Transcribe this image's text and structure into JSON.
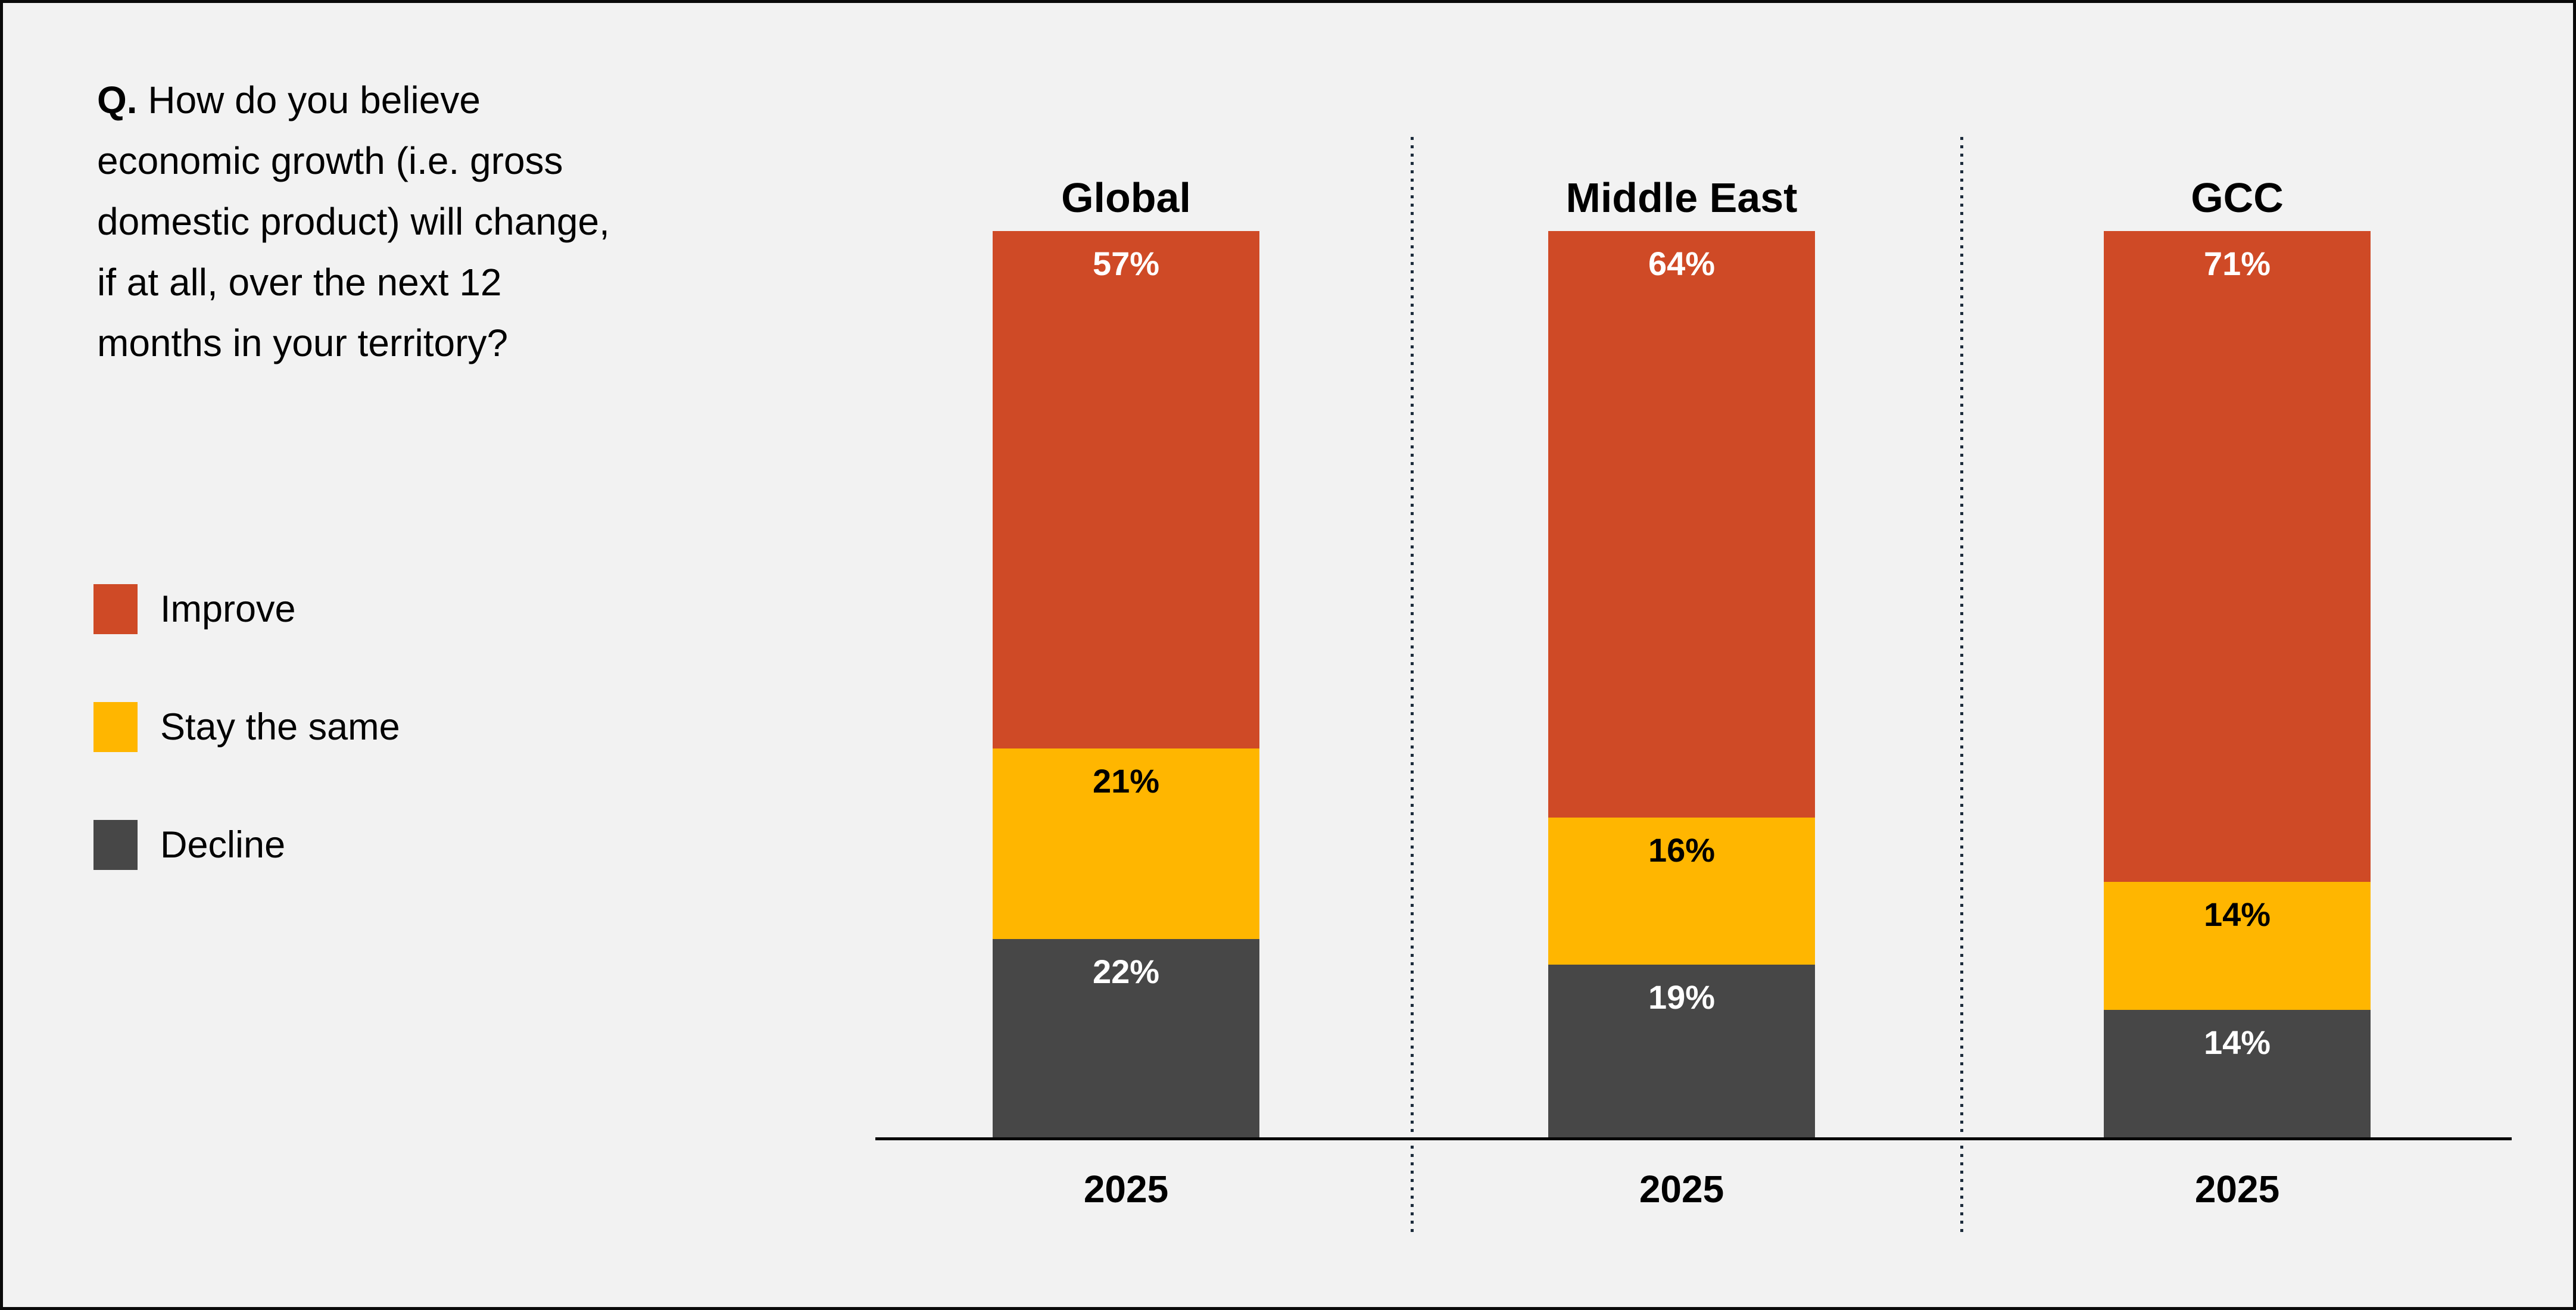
{
  "question": {
    "prefix": "Q.",
    "lines": [
      "How do you believe",
      "economic growth (i.e. gross",
      "domestic product) will change,",
      "if at all, over the next 12",
      "months in your territory?"
    ],
    "full_text": "Q. How do you believe economic growth (i.e. gross domestic product) will change, if at all, over the next 12 months in your territory?"
  },
  "legend": [
    {
      "label": "Improve",
      "color": "#cf4a26"
    },
    {
      "label": "Stay the same",
      "color": "#ffb600"
    },
    {
      "label": "Decline",
      "color": "#474747"
    }
  ],
  "chart_data": {
    "type": "bar",
    "subtype": "stacked-percentage-columns",
    "categories": [
      "Global",
      "Middle East",
      "GCC"
    ],
    "x_label": "2025",
    "value_suffix": "%",
    "series": [
      {
        "name": "Improve",
        "color": "#cf4a26",
        "label_color": "#ffffff",
        "values": [
          57,
          64,
          71
        ]
      },
      {
        "name": "Stay the same",
        "color": "#ffb600",
        "label_color": "#000000",
        "values": [
          21,
          16,
          14
        ]
      },
      {
        "name": "Decline",
        "color": "#474747",
        "label_color": "#ffffff",
        "values": [
          22,
          19,
          14
        ]
      }
    ],
    "legend_position": "left",
    "grid": false,
    "axis_line": "bottom"
  },
  "colors": {
    "background": "#f2f2f2",
    "border": "#0a0a0a",
    "axis": "#060606",
    "divider_dot": "#1d2c3c",
    "text": "#000000"
  }
}
